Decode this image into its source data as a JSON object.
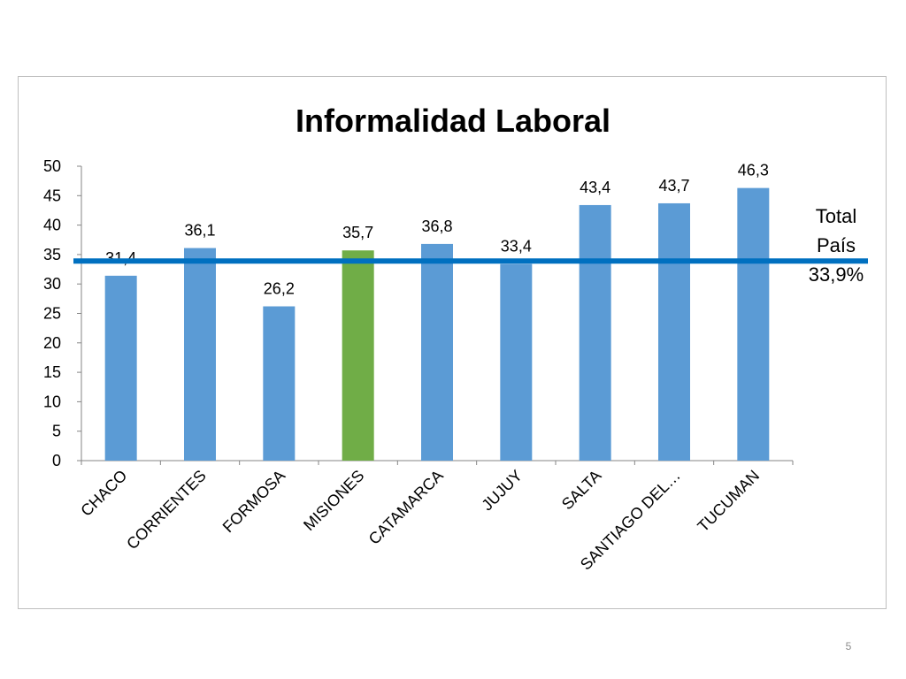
{
  "slide": {
    "page_number": "5"
  },
  "chart_data": {
    "type": "bar",
    "title": "Informalidad Laboral",
    "xlabel": "",
    "ylabel": "",
    "categories": [
      "CHACO",
      "CORRIENTES",
      "FORMOSA",
      "MISIONES",
      "CATAMARCA",
      "JUJUY",
      "SALTA",
      "SANTIAGO DEL…",
      "TUCUMAN"
    ],
    "values": [
      31.4,
      36.1,
      26.2,
      35.7,
      36.8,
      33.4,
      43.4,
      43.7,
      46.3
    ],
    "data_labels": [
      "31,4",
      "36,1",
      "26,2",
      "35,7",
      "36,8",
      "33,4",
      "43,4",
      "43,7",
      "46,3"
    ],
    "highlight_category": "MISIONES",
    "ylim": [
      0,
      50
    ],
    "yticks": [
      0,
      5,
      10,
      15,
      20,
      25,
      30,
      35,
      40,
      45,
      50
    ],
    "grid": false,
    "legend": "none",
    "reference_line": {
      "value": 33.9,
      "label_lines": [
        "Total",
        "País",
        "33,9%"
      ]
    },
    "colors": {
      "bar": "#5b9bd5",
      "highlight": "#70ad47",
      "reference_line": "#0070c0",
      "axis": "#868686",
      "text": "#000000"
    }
  }
}
